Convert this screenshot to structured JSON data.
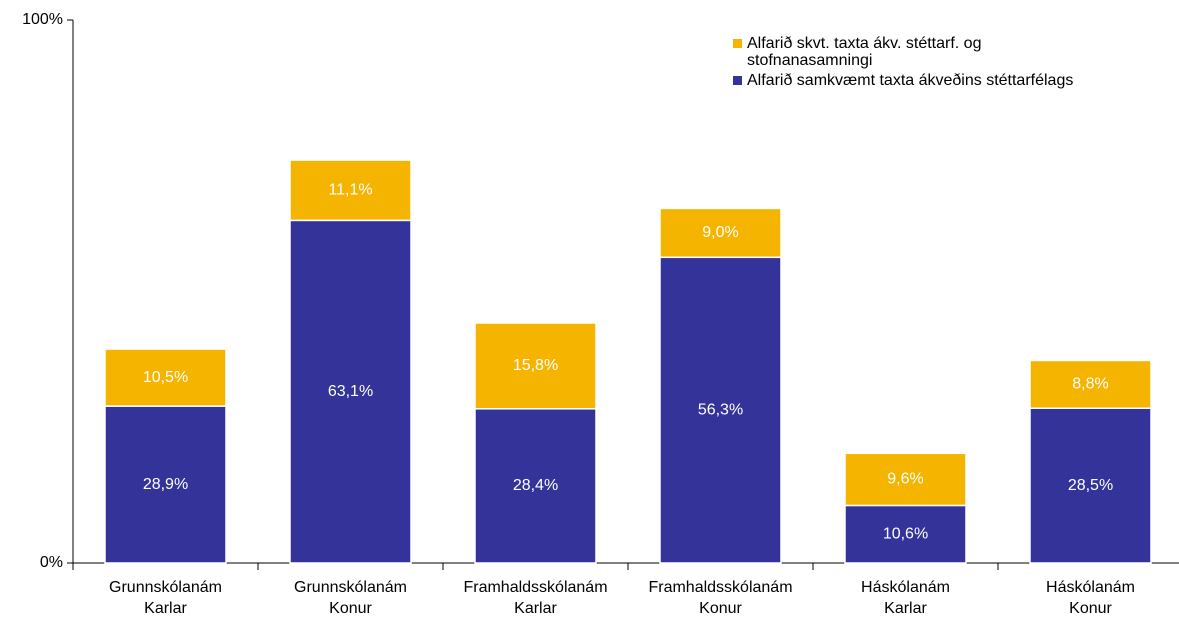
{
  "chart_data": {
    "type": "stacked_bar",
    "categories": [
      "Grunnskólanám\nKarlar",
      "Grunnskólanám\nKonur",
      "Framhaldsskólanám\nKarlar",
      "Framhaldsskólanám\nKonur",
      "Háskólanám\nKarlar",
      "Háskólanám\nKonur"
    ],
    "series": [
      {
        "name": "Alfarið samkvæmt taxta ákveðins stéttarfélags",
        "color": "#333399",
        "values": [
          28.9,
          63.1,
          28.4,
          56.3,
          10.6,
          28.5
        ],
        "value_labels": [
          "28,9%",
          "63,1%",
          "28,4%",
          "56,3%",
          "10,6%",
          "28,5%"
        ]
      },
      {
        "name": "Alfarið skvt. taxta ákv. stéttarf. og stofnanasamningi",
        "color": "#f5b400",
        "values": [
          10.5,
          11.1,
          15.8,
          9.0,
          9.6,
          8.8
        ],
        "value_labels": [
          "10,5%",
          "11,1%",
          "15,8%",
          "9,0%",
          "9,6%",
          "8,8%"
        ]
      }
    ],
    "ylim": [
      0,
      100
    ],
    "yticks": [
      {
        "value": 0,
        "label": "0%"
      },
      {
        "value": 100,
        "label": "100%"
      }
    ],
    "legend": "top-right"
  }
}
